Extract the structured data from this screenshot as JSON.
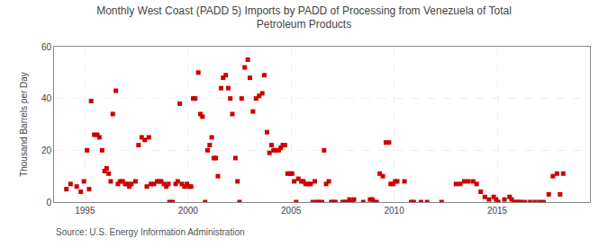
{
  "chart_data": {
    "type": "scatter",
    "title": "Monthly West Coast (PADD 5) Imports by PADD of Processing from Venezuela of Total\nPetroleum Products",
    "ylabel": "Thousand Barrels per Day",
    "annotations": [
      "Source: U.S. Energy Information Administration"
    ],
    "color": "#cc0000",
    "marker": "square",
    "grid": true,
    "xlim": [
      1993.5,
      2019.5
    ],
    "ylim": [
      0,
      60
    ],
    "xticks": [
      1995,
      2000,
      2005,
      2010,
      2015
    ],
    "yticks": [
      0,
      20,
      40,
      60
    ],
    "x": [
      1994.1,
      1994.3,
      1994.6,
      1994.8,
      1994.95,
      1995.1,
      1995.2,
      1995.3,
      1995.45,
      1995.6,
      1995.7,
      1995.83,
      1995.95,
      1996.05,
      1996.15,
      1996.25,
      1996.35,
      1996.5,
      1996.6,
      1996.7,
      1996.83,
      1996.95,
      1997.05,
      1997.15,
      1997.25,
      1997.45,
      1997.6,
      1997.75,
      1997.9,
      1998.0,
      1998.1,
      1998.2,
      1998.35,
      1998.5,
      1998.6,
      1998.7,
      1998.83,
      1998.95,
      1999.05,
      1999.1,
      1999.25,
      1999.4,
      1999.5,
      1999.6,
      1999.7,
      1999.83,
      1999.95,
      2000.05,
      2000.15,
      2000.25,
      2000.35,
      2000.5,
      2000.6,
      2000.7,
      2000.83,
      2000.95,
      2001.05,
      2001.15,
      2001.25,
      2001.35,
      2001.45,
      2001.6,
      2001.7,
      2001.83,
      2001.95,
      2002.05,
      2002.15,
      2002.3,
      2002.4,
      2002.5,
      2002.6,
      2002.75,
      2002.9,
      2003.0,
      2003.15,
      2003.3,
      2003.45,
      2003.6,
      2003.7,
      2003.83,
      2003.95,
      2004.05,
      2004.15,
      2004.25,
      2004.4,
      2004.5,
      2004.6,
      2004.7,
      2004.83,
      2004.95,
      2005.05,
      2005.15,
      2005.25,
      2005.35,
      2005.5,
      2005.6,
      2005.7,
      2005.83,
      2005.95,
      2006.05,
      2006.15,
      2006.25,
      2006.35,
      2006.5,
      2006.6,
      2006.7,
      2006.83,
      2006.95,
      2007.05,
      2007.15,
      2007.5,
      2007.6,
      2007.7,
      2007.83,
      2007.95,
      2008.05,
      2008.5,
      2008.83,
      2008.95,
      2009.05,
      2009.15,
      2009.3,
      2009.45,
      2009.6,
      2009.75,
      2009.83,
      2009.95,
      2010.05,
      2010.15,
      2010.5,
      2010.83,
      2010.95,
      2011.3,
      2011.6,
      2012.3,
      2013.0,
      2013.2,
      2013.4,
      2013.6,
      2013.83,
      2014.0,
      2014.2,
      2014.4,
      2014.6,
      2014.83,
      2014.95,
      2015.05,
      2015.35,
      2015.6,
      2015.7,
      2015.83,
      2015.95,
      2016.05,
      2016.15,
      2016.35,
      2016.6,
      2016.83,
      2017.05,
      2017.25,
      2017.5,
      2017.7,
      2017.9,
      2018.05,
      2018.2
    ],
    "values": [
      5,
      7,
      6,
      4,
      8,
      20,
      5,
      39,
      26,
      26,
      25,
      20,
      12,
      13,
      11,
      8,
      34,
      43,
      7,
      8,
      8,
      7,
      7,
      6,
      7,
      8,
      22,
      25,
      24,
      6,
      25,
      7,
      7,
      8,
      8,
      8,
      7,
      6,
      7,
      0,
      0,
      7,
      8,
      38,
      7,
      6,
      7,
      6,
      6,
      40,
      40,
      50,
      34,
      33,
      0,
      20,
      22,
      25,
      17,
      17,
      10,
      44,
      48,
      49,
      44,
      40,
      34,
      17,
      8,
      0,
      40,
      52,
      55,
      48,
      35,
      40,
      41,
      42,
      49,
      27,
      19,
      22,
      20,
      20,
      20,
      21,
      22,
      22,
      11,
      11,
      11,
      8,
      0,
      9,
      8,
      8,
      7,
      7,
      7,
      0,
      8,
      0,
      0,
      0,
      20,
      7,
      8,
      0,
      0,
      0,
      0,
      0,
      0,
      1,
      0,
      1,
      0,
      1,
      1,
      0,
      0,
      11,
      10,
      23,
      23,
      7,
      7,
      8,
      8,
      8,
      0,
      0,
      0,
      0,
      0,
      7,
      7,
      8,
      8,
      8,
      7,
      4,
      2,
      1,
      2,
      1,
      0,
      1,
      2,
      1,
      0,
      0,
      0,
      0,
      0,
      0,
      0,
      0,
      0,
      3,
      10,
      11,
      3,
      11
    ]
  }
}
